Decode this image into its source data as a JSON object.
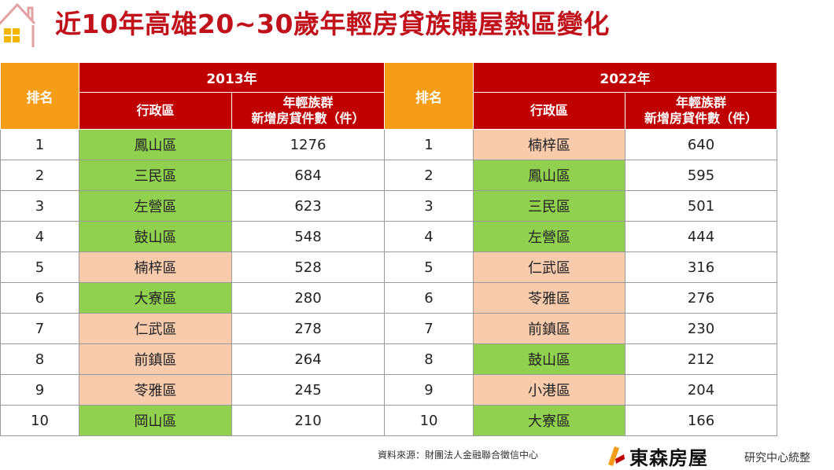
{
  "title": "近10年高雄20~30歲年輕房貸族購屋熱區變化",
  "table": {
    "rank_header": "排名",
    "district_header": "行政區",
    "count_header_line1": "年輕族群",
    "count_header_line2": "新增房貸件數（件）",
    "left_year": "2013年",
    "right_year": "2022年"
  },
  "colors": {
    "header_red": "#c00000",
    "rank_orange": "#f59d16",
    "green_cell": "#92d050",
    "pink_cell": "#f8cbad",
    "title_red": "#c0111b"
  },
  "chart_data": {
    "type": "table",
    "title": "近10年高雄20~30歲年輕房貸族購屋熱區變化",
    "columns": [
      "排名",
      "行政區",
      "年輕族群新增房貸件數（件）"
    ],
    "groups": [
      {
        "year": "2013年",
        "rows": [
          {
            "rank": "1",
            "district": "鳳山區",
            "count": 1276,
            "highlight": "green"
          },
          {
            "rank": "2",
            "district": "三民區",
            "count": 684,
            "highlight": "green"
          },
          {
            "rank": "3",
            "district": "左營區",
            "count": 623,
            "highlight": "green"
          },
          {
            "rank": "4",
            "district": "鼓山區",
            "count": 548,
            "highlight": "green"
          },
          {
            "rank": "5",
            "district": "楠梓區",
            "count": 528,
            "highlight": "pink"
          },
          {
            "rank": "6",
            "district": "大寮區",
            "count": 280,
            "highlight": "green"
          },
          {
            "rank": "7",
            "district": "仁武區",
            "count": 278,
            "highlight": "pink"
          },
          {
            "rank": "8",
            "district": "前鎮區",
            "count": 264,
            "highlight": "pink"
          },
          {
            "rank": "9",
            "district": "苓雅區",
            "count": 245,
            "highlight": "pink"
          },
          {
            "rank": "10",
            "district": "岡山區",
            "count": 210,
            "highlight": "green"
          }
        ]
      },
      {
        "year": "2022年",
        "rows": [
          {
            "rank": "1",
            "district": "楠梓區",
            "count": 640,
            "highlight": "pink"
          },
          {
            "rank": "2",
            "district": "鳳山區",
            "count": 595,
            "highlight": "green"
          },
          {
            "rank": "3",
            "district": "三民區",
            "count": 501,
            "highlight": "green"
          },
          {
            "rank": "4",
            "district": "左營區",
            "count": 444,
            "highlight": "green"
          },
          {
            "rank": "5",
            "district": "仁武區",
            "count": 316,
            "highlight": "pink"
          },
          {
            "rank": "6",
            "district": "苓雅區",
            "count": 276,
            "highlight": "pink"
          },
          {
            "rank": "7",
            "district": "前鎮區",
            "count": 230,
            "highlight": "pink"
          },
          {
            "rank": "8",
            "district": "鼓山區",
            "count": 212,
            "highlight": "green"
          },
          {
            "rank": "9",
            "district": "小港區",
            "count": 204,
            "highlight": "pink"
          },
          {
            "rank": "10",
            "district": "大寮區",
            "count": 166,
            "highlight": "green"
          }
        ]
      }
    ]
  },
  "footer": {
    "source": "資料來源：財團法人金融聯合徵信中心",
    "brand": "東森房屋",
    "center": "研究中心統整"
  }
}
